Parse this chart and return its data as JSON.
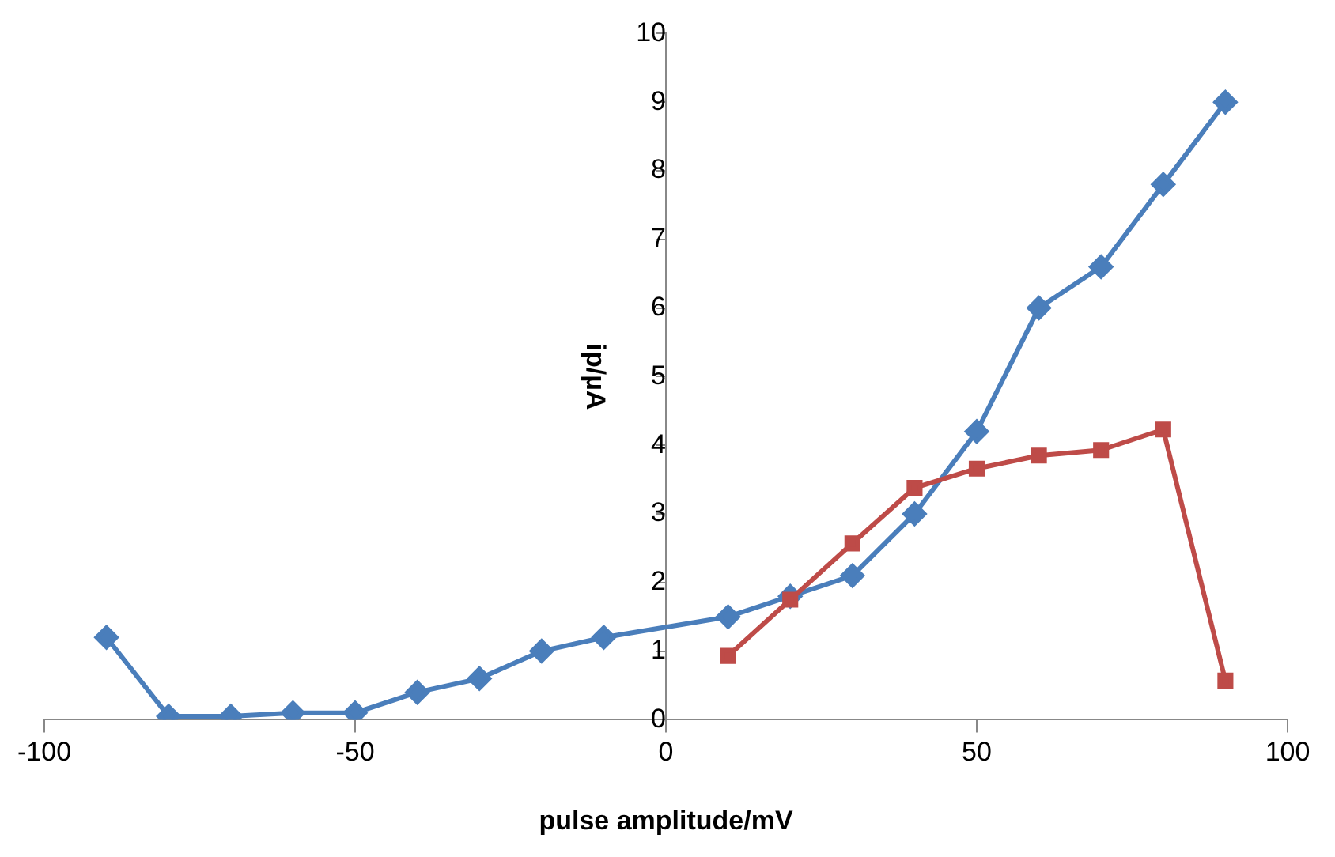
{
  "chart_data": {
    "type": "line",
    "xlabel": "pulse amplitude/mV",
    "ylabel": "ip/µA",
    "xlim": [
      -100,
      100
    ],
    "xticks": [
      -100,
      -50,
      0,
      50,
      100
    ],
    "ylim": [
      0,
      10
    ],
    "yticks": [
      0,
      1,
      2,
      3,
      4,
      5,
      6,
      7,
      8,
      9,
      10
    ],
    "grid": false,
    "legend": false,
    "line_style": "solid",
    "series": [
      {
        "color": "#4a7ebb",
        "marker": "diamond",
        "x": [
          -90,
          -80,
          -70,
          -60,
          -50,
          -40,
          -30,
          -20,
          -10,
          10,
          20,
          30,
          40,
          50,
          60,
          70,
          80,
          90
        ],
        "values": [
          1.2,
          0.05,
          0.05,
          0.1,
          0.1,
          0.4,
          0.6,
          1.0,
          1.2,
          1.5,
          1.8,
          2.1,
          3.0,
          4.2,
          6.0,
          6.6,
          7.8,
          9.0
        ]
      },
      {
        "color": "#be4b48",
        "marker": "square",
        "x": [
          10,
          20,
          30,
          40,
          50,
          60,
          70,
          80,
          90
        ],
        "values": [
          0.93,
          1.75,
          2.57,
          3.38,
          3.66,
          3.85,
          3.93,
          4.23,
          0.57
        ]
      }
    ]
  }
}
